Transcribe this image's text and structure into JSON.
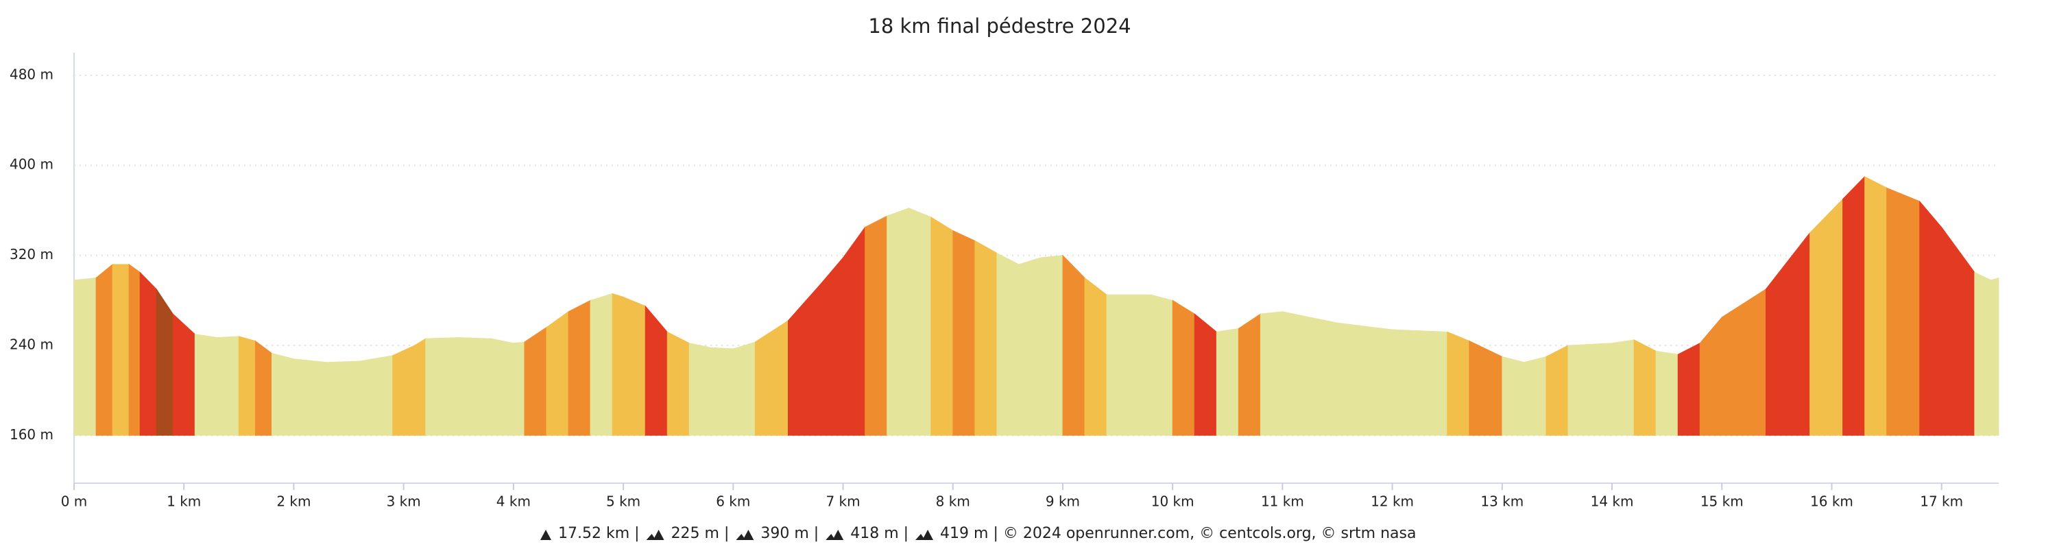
{
  "chart_data": {
    "type": "elevation",
    "title": "18 km final pédestre 2024",
    "x": [
      0.0,
      0.2,
      0.35,
      0.5,
      0.6,
      0.75,
      0.9,
      1.1,
      1.3,
      1.5,
      1.65,
      1.8,
      2.0,
      2.3,
      2.6,
      2.9,
      3.1,
      3.2,
      3.5,
      3.8,
      4.0,
      4.1,
      4.3,
      4.5,
      4.7,
      4.9,
      5.0,
      5.2,
      5.4,
      5.6,
      5.8,
      6.0,
      6.2,
      6.5,
      6.8,
      7.0,
      7.2,
      7.4,
      7.6,
      7.8,
      8.0,
      8.2,
      8.4,
      8.6,
      8.8,
      9.0,
      9.2,
      9.4,
      9.6,
      9.8,
      10.0,
      10.2,
      10.4,
      10.6,
      10.8,
      11.0,
      11.5,
      12.0,
      12.5,
      12.7,
      13.0,
      13.2,
      13.4,
      13.6,
      14.0,
      14.2,
      14.4,
      14.6,
      14.8,
      15.0,
      15.4,
      15.8,
      16.1,
      16.3,
      16.5,
      16.8,
      17.0,
      17.3,
      17.45,
      17.52
    ],
    "values": [
      298,
      300,
      312,
      312,
      305,
      290,
      268,
      250,
      247,
      248,
      244,
      233,
      228,
      225,
      226,
      231,
      240,
      246,
      247,
      246,
      242,
      243,
      256,
      270,
      280,
      286,
      283,
      275,
      252,
      242,
      238,
      237,
      243,
      262,
      295,
      318,
      345,
      355,
      362,
      354,
      342,
      333,
      322,
      312,
      318,
      320,
      300,
      285,
      285,
      285,
      280,
      268,
      252,
      255,
      268,
      270,
      260,
      254,
      252,
      244,
      230,
      225,
      230,
      240,
      242,
      245,
      235,
      232,
      242,
      265,
      290,
      340,
      370,
      390,
      380,
      368,
      345,
      305,
      298,
      300
    ],
    "segment_colors": [
      "#e4e49a",
      "#ef8c2e",
      "#f2c04a",
      "#ef8c2e",
      "#e23b22",
      "#a84a1c",
      "#e23b22",
      "#e4e49a",
      "#e4e49a",
      "#f2c04a",
      "#ef8c2e",
      "#e4e49a",
      "#e4e49a",
      "#e4e49a",
      "#e4e49a",
      "#f2c04a",
      "#f2c04a",
      "#e4e49a",
      "#e4e49a",
      "#e4e49a",
      "#e4e49a",
      "#ef8c2e",
      "#f2c04a",
      "#ef8c2e",
      "#e4e49a",
      "#f2c04a",
      "#f2c04a",
      "#e23b22",
      "#f2c04a",
      "#e4e49a",
      "#e4e49a",
      "#e4e49a",
      "#f2c04a",
      "#e23b22",
      "#e23b22",
      "#e23b22",
      "#ef8c2e",
      "#e4e49a",
      "#e4e49a",
      "#f2c04a",
      "#ef8c2e",
      "#f2c04a",
      "#e4e49a",
      "#e4e49a",
      "#e4e49a",
      "#ef8c2e",
      "#f2c04a",
      "#e4e49a",
      "#e4e49a",
      "#e4e49a",
      "#ef8c2e",
      "#e23b22",
      "#e4e49a",
      "#ef8c2e",
      "#e4e49a",
      "#e4e49a",
      "#e4e49a",
      "#e4e49a",
      "#f2c04a",
      "#ef8c2e",
      "#e4e49a",
      "#e4e49a",
      "#f2c04a",
      "#e4e49a",
      "#e4e49a",
      "#f2c04a",
      "#e4e49a",
      "#e23b22",
      "#ef8c2e",
      "#ef8c2e",
      "#e23b22",
      "#f2c04a",
      "#e23b22",
      "#f2c04a",
      "#ef8c2e",
      "#e23b22",
      "#e23b22",
      "#e4e49a",
      "#e4e49a"
    ],
    "xlim": [
      0,
      17.52
    ],
    "ylim": [
      120,
      500
    ],
    "xticks": [
      {
        "value": 0,
        "label": "0 m"
      },
      {
        "value": 1,
        "label": "1 km"
      },
      {
        "value": 2,
        "label": "2 km"
      },
      {
        "value": 3,
        "label": "3 km"
      },
      {
        "value": 4,
        "label": "4 km"
      },
      {
        "value": 5,
        "label": "5 km"
      },
      {
        "value": 6,
        "label": "6 km"
      },
      {
        "value": 7,
        "label": "7 km"
      },
      {
        "value": 8,
        "label": "8 km"
      },
      {
        "value": 9,
        "label": "9 km"
      },
      {
        "value": 10,
        "label": "10 km"
      },
      {
        "value": 11,
        "label": "11 km"
      },
      {
        "value": 12,
        "label": "12 km"
      },
      {
        "value": 13,
        "label": "13 km"
      },
      {
        "value": 14,
        "label": "14 km"
      },
      {
        "value": 15,
        "label": "15 km"
      },
      {
        "value": 16,
        "label": "16 km"
      },
      {
        "value": 17,
        "label": "17 km"
      }
    ],
    "yticks": [
      {
        "value": 160,
        "label": "160 m"
      },
      {
        "value": 240,
        "label": "240 m"
      },
      {
        "value": 320,
        "label": "320 m"
      },
      {
        "value": 400,
        "label": "400 m"
      },
      {
        "value": 480,
        "label": "480 m"
      }
    ],
    "grid": true,
    "footer": [
      "17.52 km |",
      "225 m |",
      "390 m |",
      "418 m |",
      "419 m | © 2024 openrunner.com, © centcols.org, © srtm nasa"
    ]
  }
}
